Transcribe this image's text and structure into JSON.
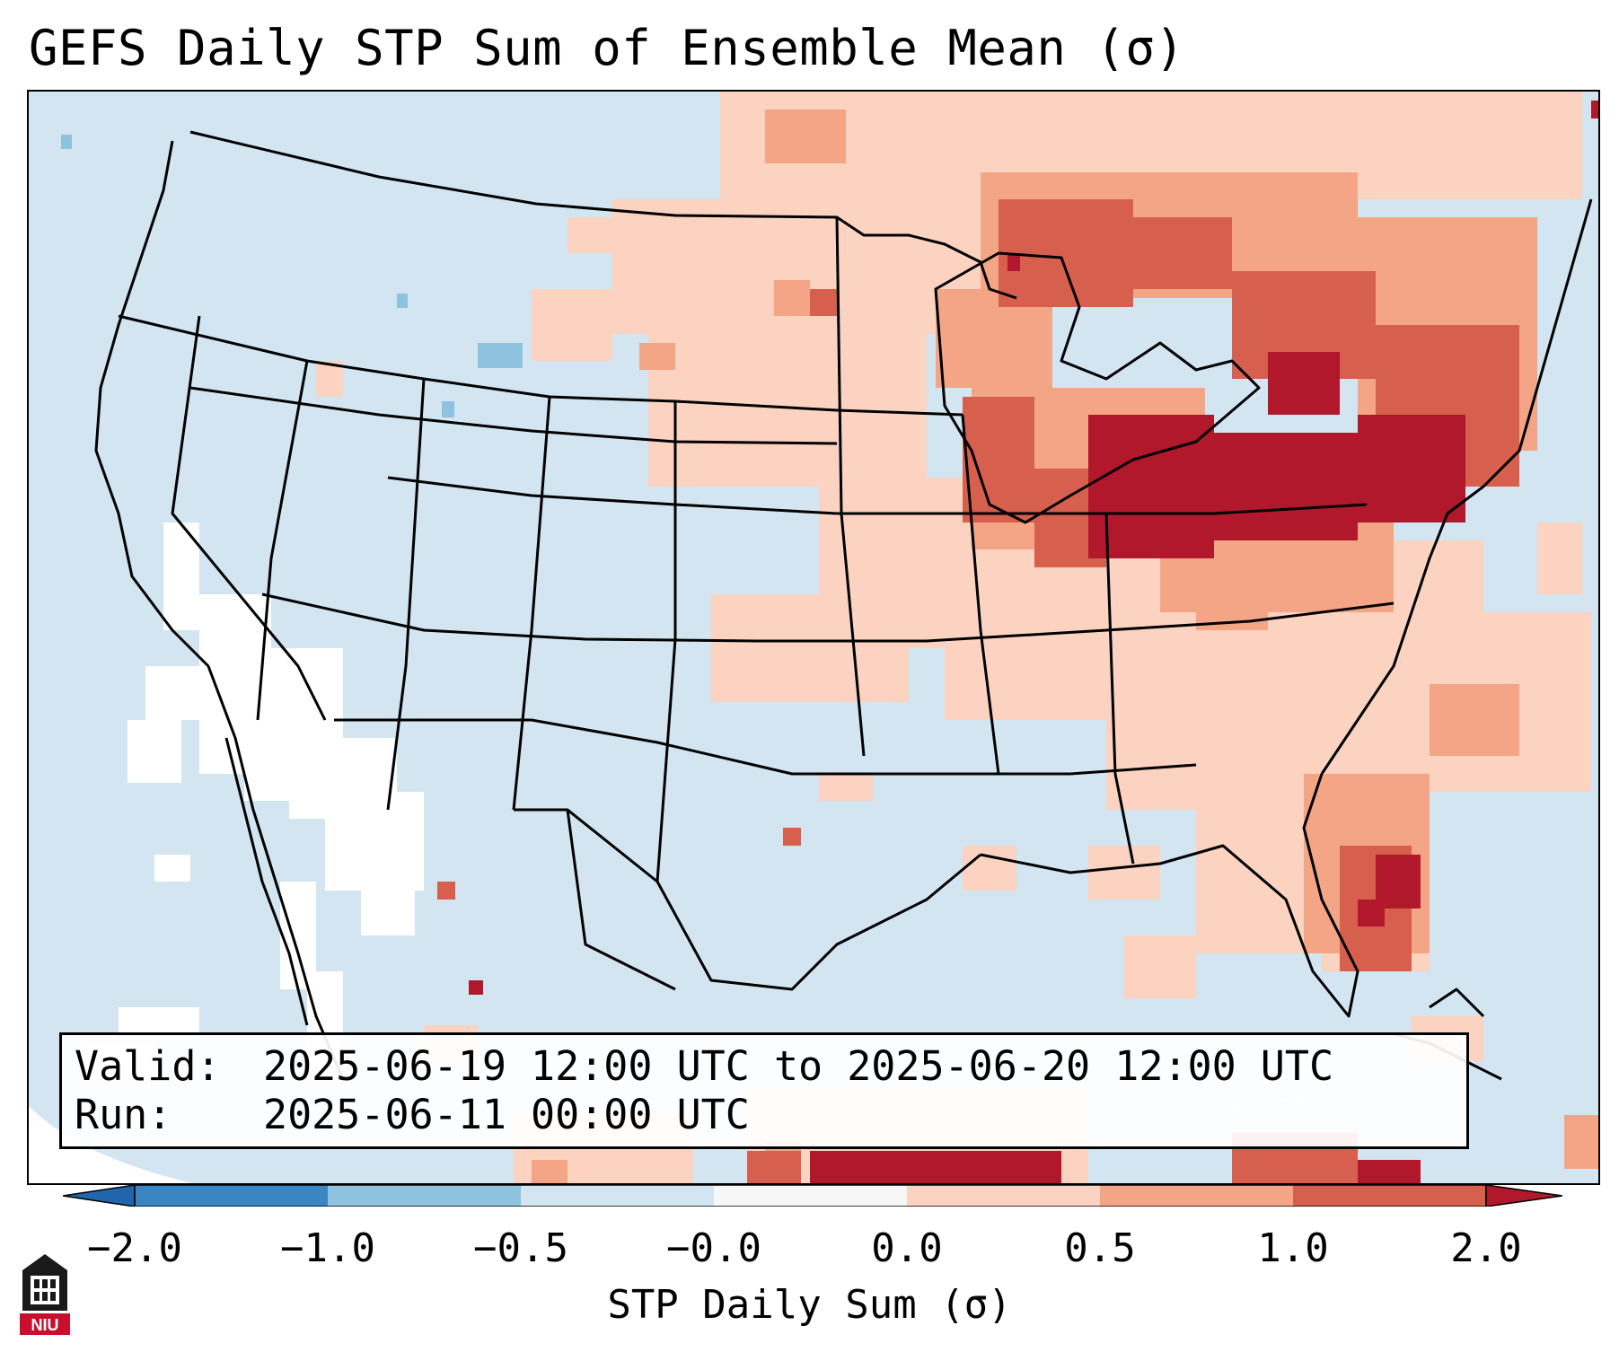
{
  "title": "GEFS Daily STP Sum of Ensemble Mean (σ)",
  "info": {
    "valid_label": "Valid:",
    "valid_value": "2025-06-19 12:00 UTC to 2025-06-20 12:00 UTC",
    "run_label": "Run:",
    "run_value": "2025-06-11 00:00 UTC"
  },
  "colorbar": {
    "label": "STP Daily Sum (σ)",
    "ticks": [
      "−2.0",
      "−1.0",
      "−0.5",
      "−0.0",
      "0.0",
      "0.5",
      "1.0",
      "2.0"
    ],
    "colors": [
      "#3a86c2",
      "#8fc2de",
      "#d2e5f1",
      "#f7f7f7",
      "#fbd3c0",
      "#f3a585",
      "#d6604d",
      "#b2182b"
    ],
    "extend_low_color": "#2166ac",
    "extend_high_color": "#b2182b"
  },
  "map": {
    "background_color": "#d2e5f1",
    "land_white_color": "#ffffff"
  },
  "logo": {
    "text": "NIU"
  }
}
